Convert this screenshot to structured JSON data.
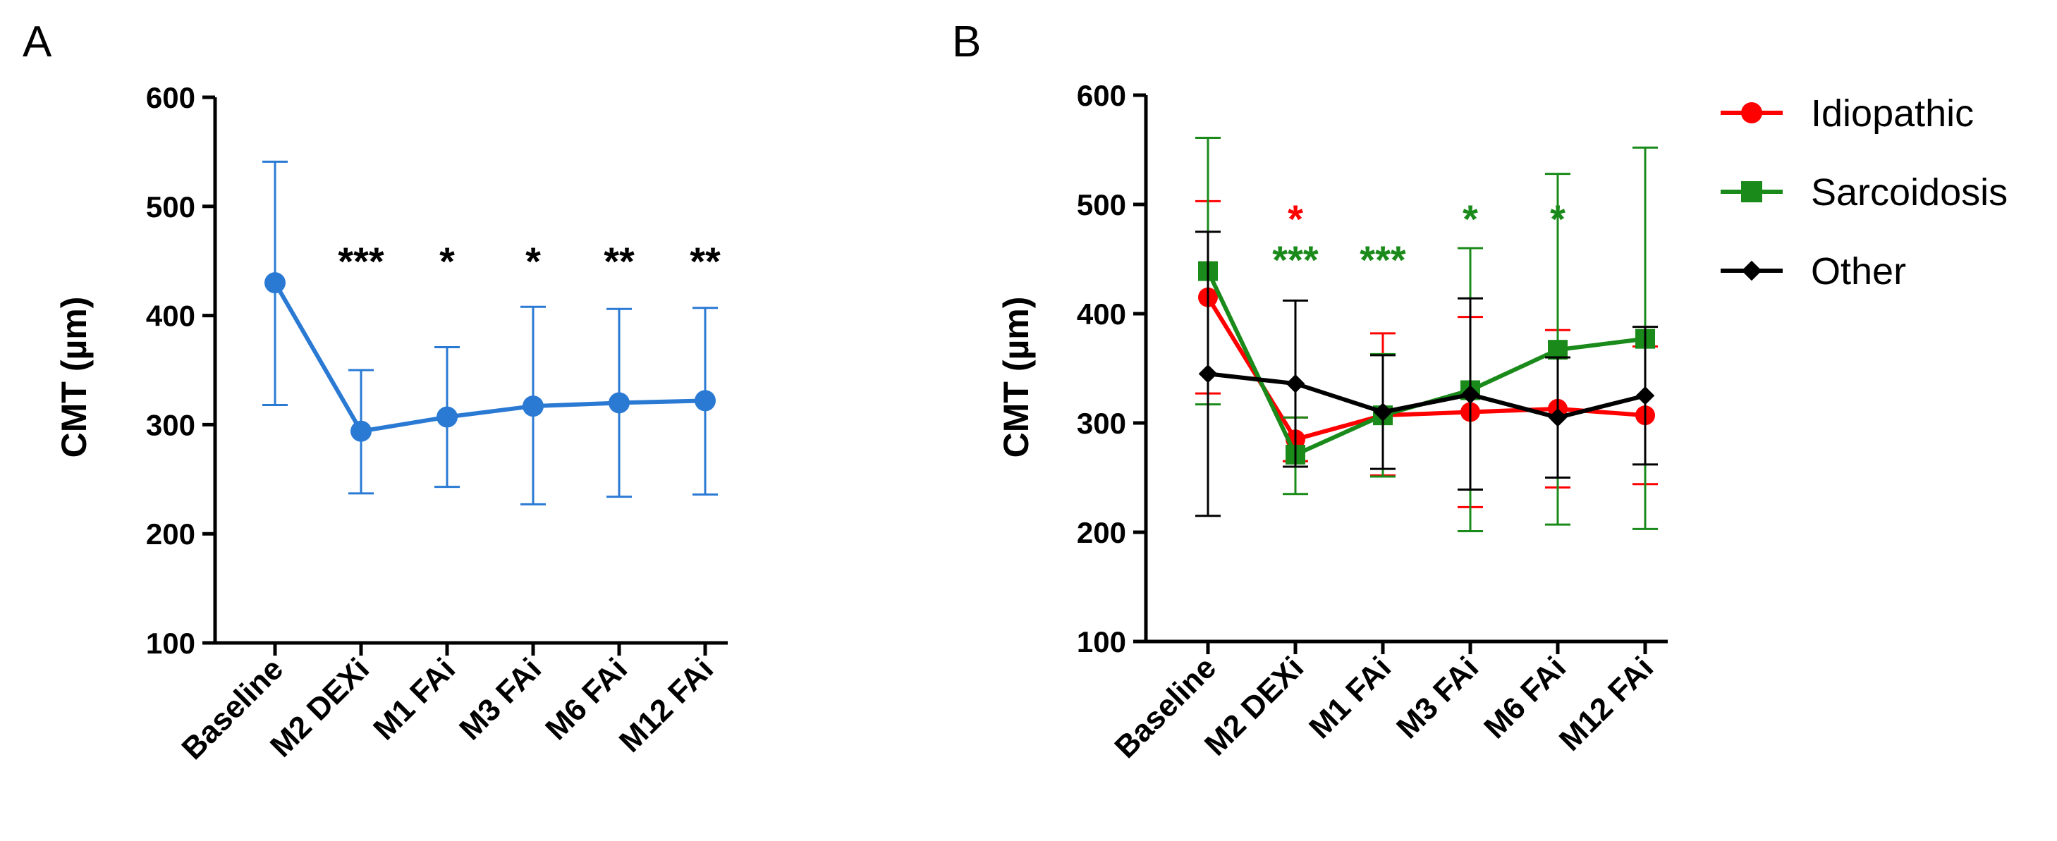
{
  "chart_data": [
    {
      "panel": "A",
      "type": "line",
      "ylabel": "CMT (µm)",
      "xlabel": "",
      "ylim": [
        100,
        600
      ],
      "yticks": [
        100,
        200,
        300,
        400,
        500,
        600
      ],
      "categories": [
        "Baseline",
        "M2 DEXi",
        "M1 FAi",
        "M3 FAi",
        "M6 FAi",
        "M12 FAi"
      ],
      "series": [
        {
          "name": "All",
          "color": "#2a7ad4",
          "marker": "circle",
          "values": [
            430,
            294,
            307,
            317,
            320,
            322
          ],
          "err_upper": [
            541,
            350,
            371,
            408,
            406,
            407
          ],
          "err_lower": [
            318,
            237,
            243,
            227,
            234,
            236
          ]
        }
      ],
      "annotations": [
        {
          "index": 1,
          "text": "***",
          "color": "#000000"
        },
        {
          "index": 2,
          "text": "*",
          "color": "#000000"
        },
        {
          "index": 3,
          "text": "*",
          "color": "#000000"
        },
        {
          "index": 4,
          "text": "**",
          "color": "#000000"
        },
        {
          "index": 5,
          "text": "**",
          "color": "#000000"
        }
      ]
    },
    {
      "panel": "B",
      "type": "line",
      "ylabel": "CMT (µm)",
      "xlabel": "",
      "ylim": [
        100,
        600
      ],
      "yticks": [
        100,
        200,
        300,
        400,
        500,
        600
      ],
      "categories": [
        "Baseline",
        "M2 DEXi",
        "M1 FAi",
        "M3 FAi",
        "M6 FAi",
        "M12 FAi"
      ],
      "legend_position": "top-right",
      "series": [
        {
          "name": "Idiopathic",
          "color": "#ff0000",
          "marker": "circle",
          "values": [
            415,
            285,
            307,
            310,
            313,
            307
          ],
          "err_upper": [
            503,
            305,
            382,
            397,
            385,
            370
          ],
          "err_lower": [
            327,
            265,
            252,
            223,
            241,
            244
          ]
        },
        {
          "name": "Sarcoidosis",
          "color": "#1a8a1a",
          "marker": "square",
          "values": [
            439,
            271,
            307,
            330,
            367,
            377
          ],
          "err_upper": [
            561,
            305,
            363,
            460,
            528,
            552
          ],
          "err_lower": [
            317,
            235,
            251,
            201,
            207,
            203
          ]
        },
        {
          "name": "Other",
          "color": "#000000",
          "marker": "diamond",
          "values": [
            345,
            336,
            310,
            326,
            305,
            325
          ],
          "err_upper": [
            475,
            412,
            362,
            414,
            360,
            388
          ],
          "err_lower": [
            215,
            260,
            258,
            239,
            250,
            262
          ]
        }
      ],
      "annotations": [
        {
          "index": 1,
          "text": "*",
          "color": "#ff0000",
          "row": 0
        },
        {
          "index": 1,
          "text": "***",
          "color": "#1a8a1a",
          "row": 1
        },
        {
          "index": 2,
          "text": "***",
          "color": "#1a8a1a",
          "row": 1
        },
        {
          "index": 3,
          "text": "*",
          "color": "#1a8a1a",
          "row": 0
        },
        {
          "index": 4,
          "text": "*",
          "color": "#1a8a1a",
          "row": 0
        }
      ]
    }
  ]
}
